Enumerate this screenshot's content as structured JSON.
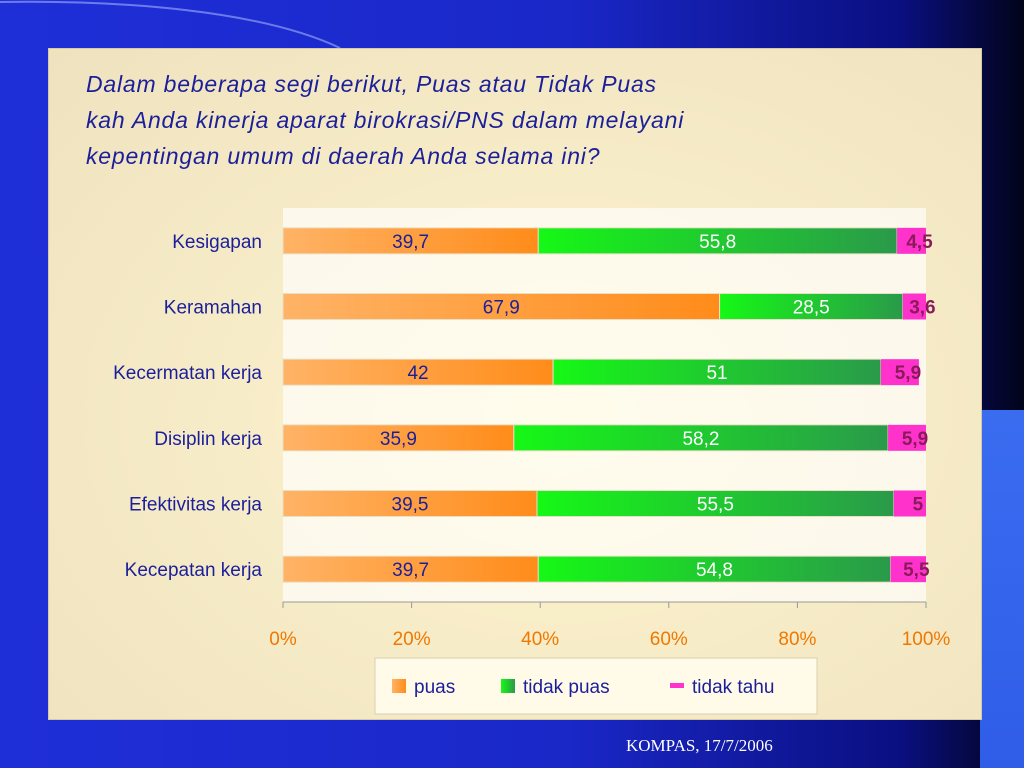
{
  "title_lines": [
    "Dalam beberapa segi berikut, Puas atau Tidak Puas",
    "kah Anda kinerja aparat birokrasi/PNS dalam melayani",
    "kepentingan umum di daerah Anda selama ini?"
  ],
  "source": "KOMPAS, 17/7/2006",
  "colors": {
    "puas": "#ff8c1a",
    "tidak_puas": "#16f816",
    "tidak_tahu": "#ff33cc",
    "text": "#1b1f9a",
    "label_small": "#8a1a5a"
  },
  "chart_data": {
    "type": "bar",
    "orientation": "horizontal",
    "stacked": true,
    "categories": [
      "Kesigapan",
      "Keramahan",
      "Kecermatan kerja",
      "Disiplin kerja",
      "Efektivitas kerja",
      "Kecepatan kerja"
    ],
    "series": [
      {
        "name": "puas",
        "values": [
          39.7,
          67.9,
          42,
          35.9,
          39.5,
          39.7
        ],
        "labels": [
          "39,7",
          "67,9",
          "42",
          "35,9",
          "39,5",
          "39,7"
        ]
      },
      {
        "name": "tidak puas",
        "values": [
          55.8,
          28.5,
          51,
          58.2,
          55.5,
          54.8
        ],
        "labels": [
          "55,8",
          "28,5",
          "51",
          "58,2",
          "55,5",
          "54,8"
        ]
      },
      {
        "name": "tidak tahu",
        "values": [
          4.5,
          3.6,
          5.9,
          5.9,
          5,
          5.5
        ],
        "labels": [
          "4,5",
          "3,6",
          "5,9",
          "5,9",
          "5",
          "5,5"
        ]
      }
    ],
    "xlim": [
      0,
      100
    ],
    "xticks": [
      "0%",
      "20%",
      "40%",
      "60%",
      "80%",
      "100%"
    ],
    "legend_position": "bottom",
    "grid": false
  }
}
